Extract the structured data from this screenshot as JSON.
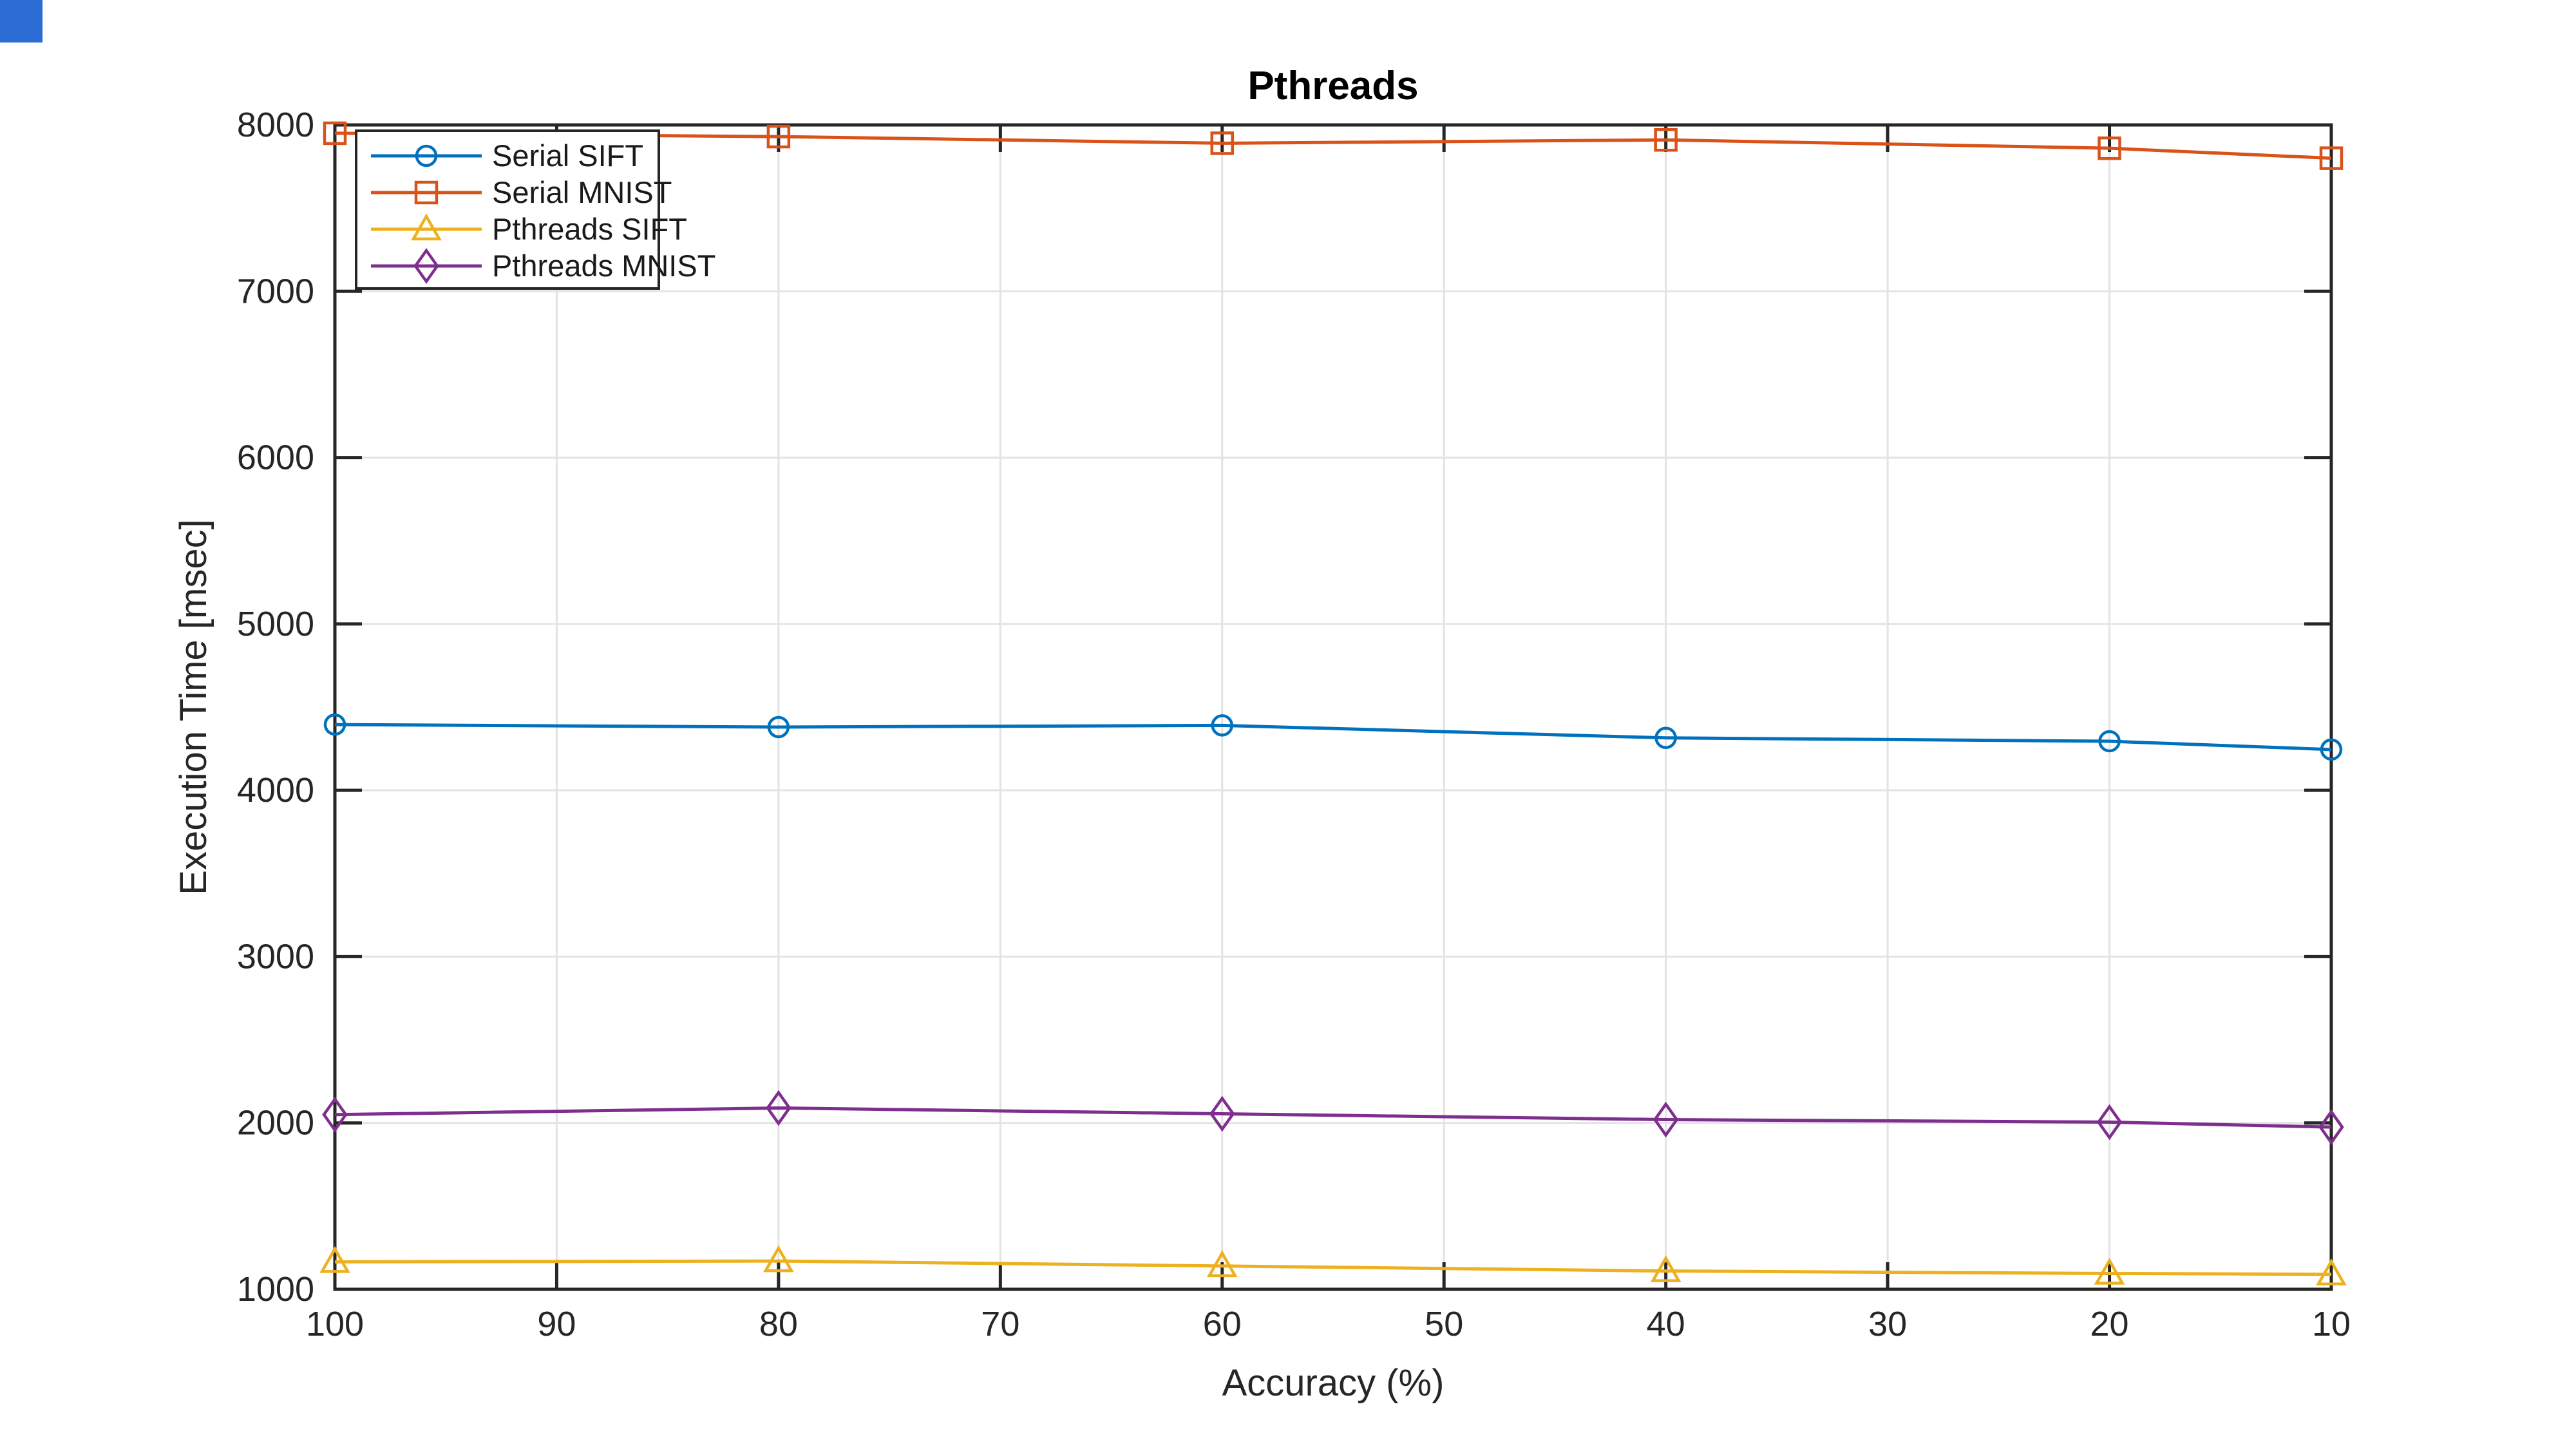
{
  "window": {
    "background": "#ffffff",
    "corner_artifact_color": "#2a6bd4"
  },
  "chart_data": {
    "type": "line",
    "title": "Pthreads",
    "xlabel": "Accuracy (%)",
    "ylabel": "Execution Time [msec]",
    "x": [
      100,
      80,
      60,
      40,
      20,
      10
    ],
    "x_axis": {
      "lim": [
        100,
        10
      ],
      "reversed": true,
      "ticks": [
        100,
        90,
        80,
        70,
        60,
        50,
        40,
        30,
        20,
        10
      ]
    },
    "y_axis": {
      "lim": [
        1000,
        8000
      ],
      "ticks": [
        1000,
        2000,
        3000,
        4000,
        5000,
        6000,
        7000,
        8000
      ]
    },
    "grid": true,
    "legend_position": "top-left",
    "series": [
      {
        "name": "Serial SIFT",
        "color": "#0072BD",
        "marker": "circle",
        "values": [
          4395,
          4380,
          4390,
          4315,
          4295,
          4245
        ]
      },
      {
        "name": "Serial MNIST",
        "color": "#D95319",
        "marker": "square",
        "values": [
          7950,
          7930,
          7890,
          7910,
          7860,
          7800
        ]
      },
      {
        "name": "Pthreads SIFT",
        "color": "#EDB120",
        "marker": "triangle",
        "values": [
          1165,
          1170,
          1140,
          1110,
          1095,
          1090
        ]
      },
      {
        "name": "Pthreads MNIST",
        "color": "#7E2F8E",
        "marker": "diamond",
        "values": [
          2050,
          2090,
          2055,
          2020,
          2005,
          1975
        ]
      }
    ],
    "style": {
      "axis_color": "#262626",
      "grid_color": "#E3E3E3",
      "label_color": "#262626",
      "title_color": "#000000",
      "background": "#ffffff"
    }
  }
}
